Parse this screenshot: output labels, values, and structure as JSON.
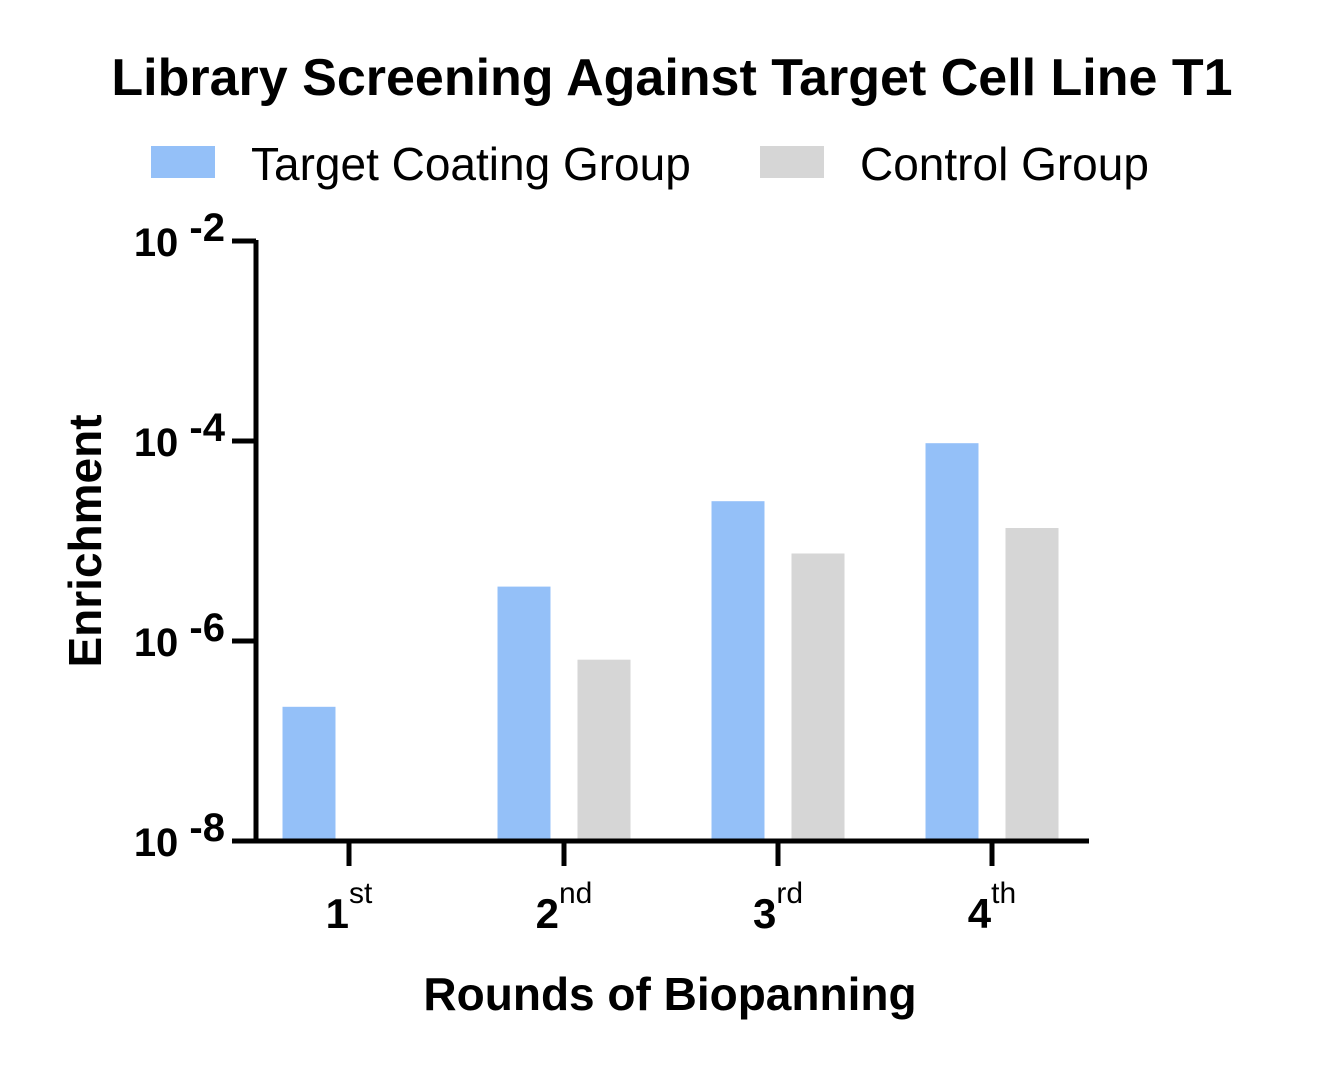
{
  "chart_data": {
    "type": "bar",
    "title": "Library Screening Against Target Cell Line T1",
    "xlabel": "Rounds of Biopanning",
    "ylabel": "Enrichment",
    "yscale": "log",
    "ylim": [
      1e-08,
      0.01
    ],
    "legend_position": "top",
    "grid": false,
    "categories": [
      {
        "main": "1",
        "sup": "st"
      },
      {
        "main": "2",
        "sup": "nd"
      },
      {
        "main": "3",
        "sup": "rd"
      },
      {
        "main": "4",
        "sup": "th"
      }
    ],
    "yticks": [
      {
        "base": "10",
        "exp": "-2",
        "value": 0.01
      },
      {
        "base": "10",
        "exp": "-4",
        "value": 0.0001
      },
      {
        "base": "10",
        "exp": "-6",
        "value": 1e-06
      },
      {
        "base": "10",
        "exp": "-8",
        "value": 1e-08
      }
    ],
    "series": [
      {
        "name": "Target Coating Group",
        "color": "#94c0f8",
        "values": [
          2.2e-07,
          3.5e-06,
          2.5e-05,
          9.5e-05
        ]
      },
      {
        "name": "Control Group",
        "color": "#d6d6d6",
        "values": [
          null,
          6.5e-07,
          7.5e-06,
          1.35e-05
        ]
      }
    ]
  }
}
